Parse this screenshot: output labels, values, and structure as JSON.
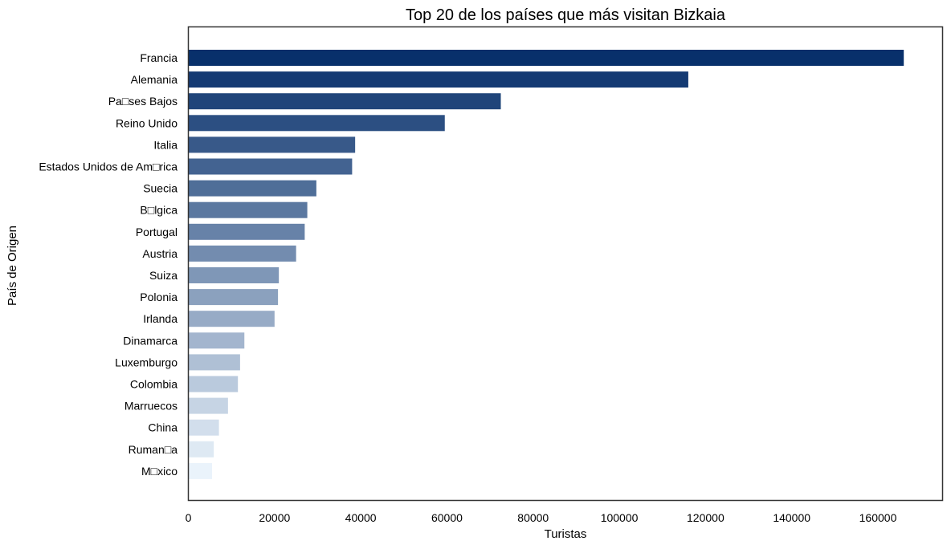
{
  "chart_data": {
    "type": "bar",
    "orientation": "horizontal",
    "title": "Top 20 de los países que más visitan Bizkaia",
    "xlabel": "Turistas",
    "ylabel": "País de Origen",
    "xlim": [
      0,
      175000
    ],
    "xticks": [
      0,
      20000,
      40000,
      60000,
      80000,
      100000,
      120000,
      140000,
      160000
    ],
    "grid": false,
    "legend": "none",
    "color_scale": "Blues (dark for highest, light for lowest)",
    "colors": {
      "darkest": "#08306b",
      "lightest": "#eaf3fb",
      "axis": "#333333"
    },
    "categories": [
      "Francia",
      "Alemania",
      "Pa□ses Bajos",
      "Reino Unido",
      "Italia",
      "Estados Unidos de Am□rica",
      "Suecia",
      "B□lgica",
      "Portugal",
      "Austria",
      "Suiza",
      "Polonia",
      "Irlanda",
      "Dinamarca",
      "Luxemburgo",
      "Colombia",
      "Marruecos",
      "China",
      "Ruman□a",
      "M□xico"
    ],
    "values": [
      166000,
      116000,
      72500,
      59500,
      38700,
      38000,
      29700,
      27600,
      27000,
      25000,
      21000,
      20800,
      20000,
      13000,
      12000,
      11500,
      9200,
      7100,
      5900,
      5500
    ]
  }
}
